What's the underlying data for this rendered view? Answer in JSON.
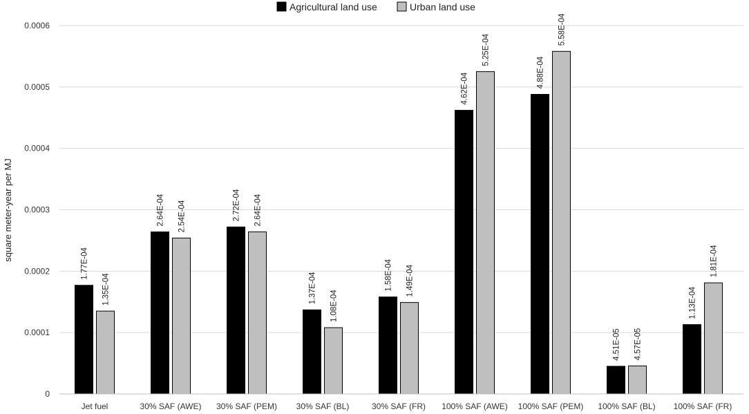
{
  "chart_data": {
    "type": "bar",
    "title": "",
    "xlabel": "",
    "ylabel": "square meter-year per MJ",
    "ylim": [
      0,
      0.0006
    ],
    "yticks": [
      {
        "value": 0,
        "label": "0"
      },
      {
        "value": 0.0001,
        "label": "0.0001"
      },
      {
        "value": 0.0002,
        "label": "0.0002"
      },
      {
        "value": 0.0003,
        "label": "0.0003"
      },
      {
        "value": 0.0004,
        "label": "0.0004"
      },
      {
        "value": 0.0005,
        "label": "0.0005"
      },
      {
        "value": 0.0006,
        "label": "0.0006"
      }
    ],
    "grid": true,
    "legend_position": "top-center",
    "categories": [
      "Jet fuel",
      "30% SAF (AWE)",
      "30% SAF (PEM)",
      "30% SAF (BL)",
      "30% SAF (FR)",
      "100% SAF (AWE)",
      "100% SAF (PEM)",
      "100% SAF (BL)",
      "100% SAF (FR)"
    ],
    "series": [
      {
        "name": "Agricultural land use",
        "color": "#000000",
        "values": [
          0.000177,
          0.000264,
          0.000272,
          0.000137,
          0.000158,
          0.000462,
          0.000488,
          4.51e-05,
          0.000113
        ],
        "labels": [
          "1.77E-04",
          "2.64E-04",
          "2.72E-04",
          "1.37E-04",
          "1.58E-04",
          "4.62E-04",
          "4.88E-04",
          "4.51E-05",
          "1.13E-04"
        ]
      },
      {
        "name": "Urban land use",
        "color": "#bfbfbf",
        "values": [
          0.000135,
          0.000254,
          0.000264,
          0.000108,
          0.000149,
          0.000525,
          0.000558,
          4.57e-05,
          0.000181
        ],
        "labels": [
          "1.35E-04",
          "2.54E-04",
          "2.64E-04",
          "1.08E-04",
          "1.49E-04",
          "5.25E-04",
          "5.58E-04",
          "4.57E-05",
          "1.81E-04"
        ]
      }
    ]
  }
}
